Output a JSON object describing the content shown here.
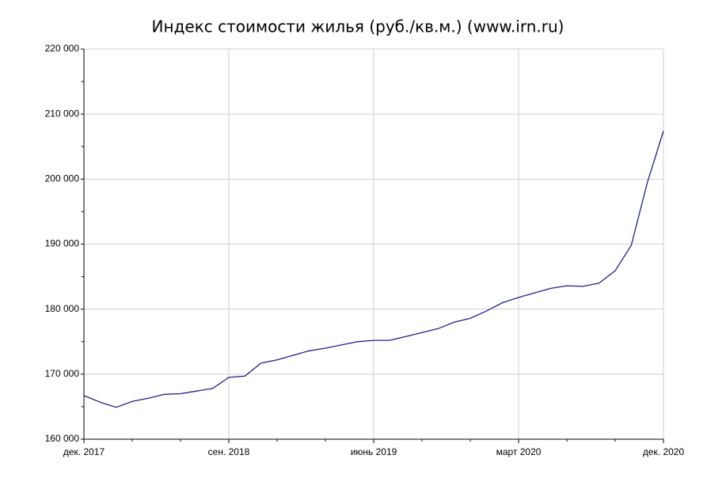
{
  "chart_data": {
    "type": "line",
    "title": "Индекс стоимости жилья (руб./кв.м.) (www.irn.ru)",
    "categories": [
      "дек. 2017",
      null,
      null,
      null,
      null,
      null,
      null,
      null,
      null,
      "сен. 2018",
      null,
      null,
      null,
      null,
      null,
      null,
      null,
      null,
      "июнь 2019",
      null,
      null,
      null,
      null,
      null,
      null,
      null,
      null,
      "март 2020",
      null,
      null,
      null,
      null,
      null,
      null,
      null,
      null,
      "дек. 2020"
    ],
    "series": [
      {
        "color": "#1f1f8f",
        "values": [
          166700,
          165700,
          164900,
          165800,
          166300,
          166900,
          167000,
          167400,
          167800,
          169500,
          169700,
          171700,
          172200,
          172900,
          173600,
          174000,
          174500,
          175000,
          175200,
          175200,
          175800,
          176400,
          177000,
          178000,
          178600,
          179700,
          181000,
          181800,
          182500,
          183200,
          183600,
          183500,
          184000,
          185900,
          189800,
          199500,
          207400
        ]
      }
    ],
    "ylim": [
      160000,
      220000
    ],
    "yticks": [
      {
        "value": 160000,
        "label": "160 000"
      },
      {
        "value": 170000,
        "label": "170 000"
      },
      {
        "value": 180000,
        "label": "180 000"
      },
      {
        "value": 190000,
        "label": "190 000"
      },
      {
        "value": 200000,
        "label": "200 000"
      },
      {
        "value": 210000,
        "label": "210 000"
      },
      {
        "value": 220000,
        "label": "220 000"
      }
    ],
    "grid": true
  }
}
